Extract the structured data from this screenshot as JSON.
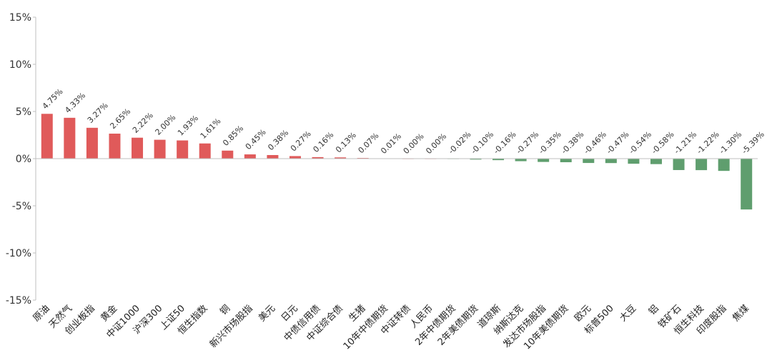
{
  "chart_data": {
    "type": "bar",
    "title": "",
    "xlabel": "",
    "ylabel": "",
    "ylim": [
      -15,
      15
    ],
    "yticks": [
      15,
      10,
      5,
      0,
      -5,
      -10,
      -15
    ],
    "ytick_labels": [
      "15%",
      "10%",
      "5%",
      "0%",
      "-5%",
      "-10%",
      "-15%"
    ],
    "grid": false,
    "legend": "none",
    "colors": {
      "positive": "#e05a5a",
      "negative": "#5f9e6e",
      "axis": "#bfbfbf"
    },
    "categories": [
      "原油",
      "天然气",
      "创业板指",
      "黄金",
      "中证1000",
      "沪深300",
      "上证50",
      "恒生指数",
      "铜",
      "新兴市场股指",
      "美元",
      "日元",
      "中债信用债",
      "中证综合债",
      "生猪",
      "10年中债期货",
      "中证转债",
      "人民币",
      "2年中债期货",
      "2年美债期货",
      "道琼斯",
      "纳斯达克",
      "发达市场股指",
      "10年美债期货",
      "欧元",
      "标普500",
      "大豆",
      "铝",
      "铁矿石",
      "恒生科技",
      "印度股指",
      "焦煤"
    ],
    "values": [
      4.75,
      4.33,
      3.27,
      2.65,
      2.22,
      2.0,
      1.93,
      1.61,
      0.85,
      0.45,
      0.38,
      0.27,
      0.16,
      0.13,
      0.07,
      0.01,
      0.0,
      0.0,
      -0.02,
      -0.1,
      -0.16,
      -0.27,
      -0.35,
      -0.38,
      -0.46,
      -0.47,
      -0.54,
      -0.58,
      -1.21,
      -1.22,
      -1.3,
      -5.39
    ],
    "data_labels": [
      "4.75%",
      "4.33%",
      "3.27%",
      "2.65%",
      "2.22%",
      "2.00%",
      "1.93%",
      "1.61%",
      "0.85%",
      "0.45%",
      "0.38%",
      "0.27%",
      "0.16%",
      "0.13%",
      "0.07%",
      "0.01%",
      "0.00%",
      "0.00%",
      "-0.02%",
      "-0.10%",
      "-0.16%",
      "-0.27%",
      "-0.35%",
      "-0.38%",
      "-0.46%",
      "-0.47%",
      "-0.54%",
      "-0.58%",
      "-1.21%",
      "-1.22%",
      "-1.30%",
      "-5.39%"
    ]
  }
}
